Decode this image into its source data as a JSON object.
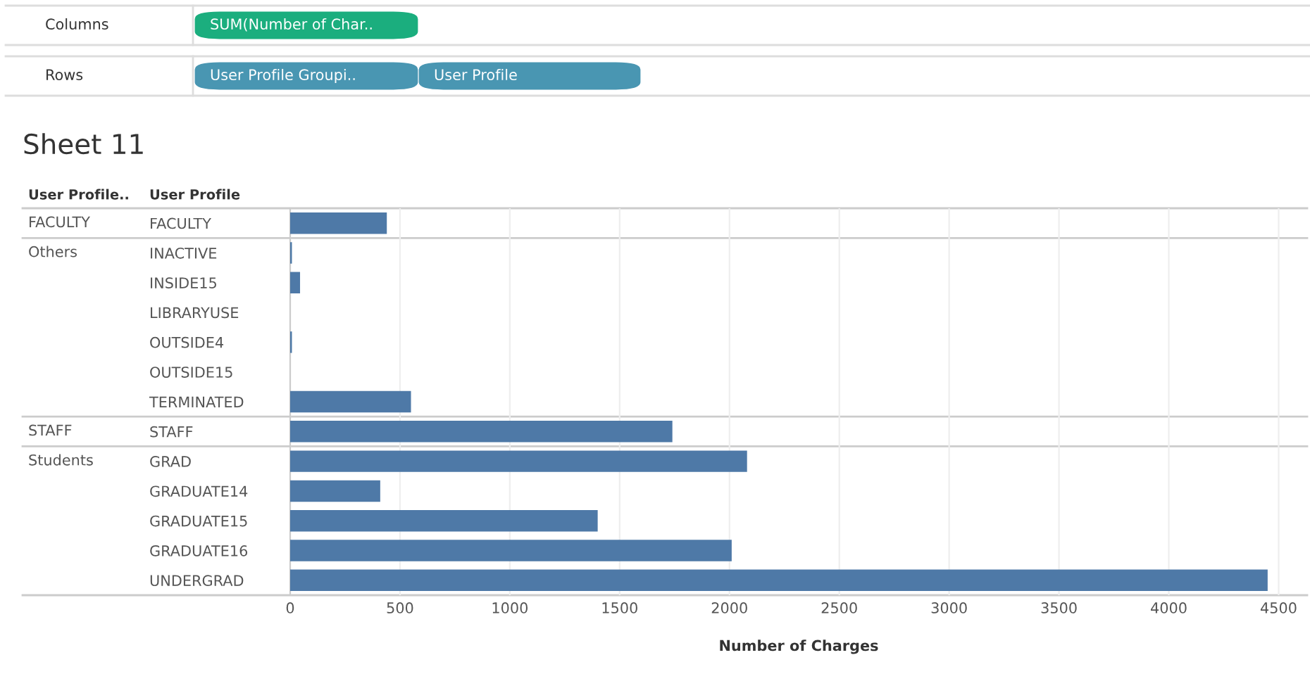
{
  "chart_data": {
    "type": "bar",
    "orientation": "horizontal",
    "title": "Sheet 11",
    "xlabel": "Number of Charges",
    "categories": [
      "FACULTY",
      "INACTIVE",
      "INSIDE15",
      "LIBRARYUSE",
      "OUTSIDE4",
      "OUTSIDE15",
      "TERMINATED",
      "STAFF",
      "GRAD",
      "GRADUATE14",
      "GRADUATE15",
      "GRADUATE16",
      "UNDERGRAD"
    ],
    "values": [
      440,
      8,
      45,
      0,
      8,
      0,
      550,
      1740,
      2080,
      410,
      1400,
      2010,
      4450
    ],
    "color": "#4e79a7",
    "xlim": [
      0,
      4630
    ],
    "xticks": [
      0,
      500,
      1000,
      1500,
      2000,
      2500,
      3000,
      3500,
      4000,
      4500
    ],
    "grid": "x",
    "annotations": [
      "Columns",
      "SUM(Number of Char..",
      "Rows",
      "User Profile Groupi..",
      "User Profile",
      "User Profile..",
      "User Profile",
      "FACULTY",
      "Others",
      "STAFF",
      "Students"
    ]
  }
}
